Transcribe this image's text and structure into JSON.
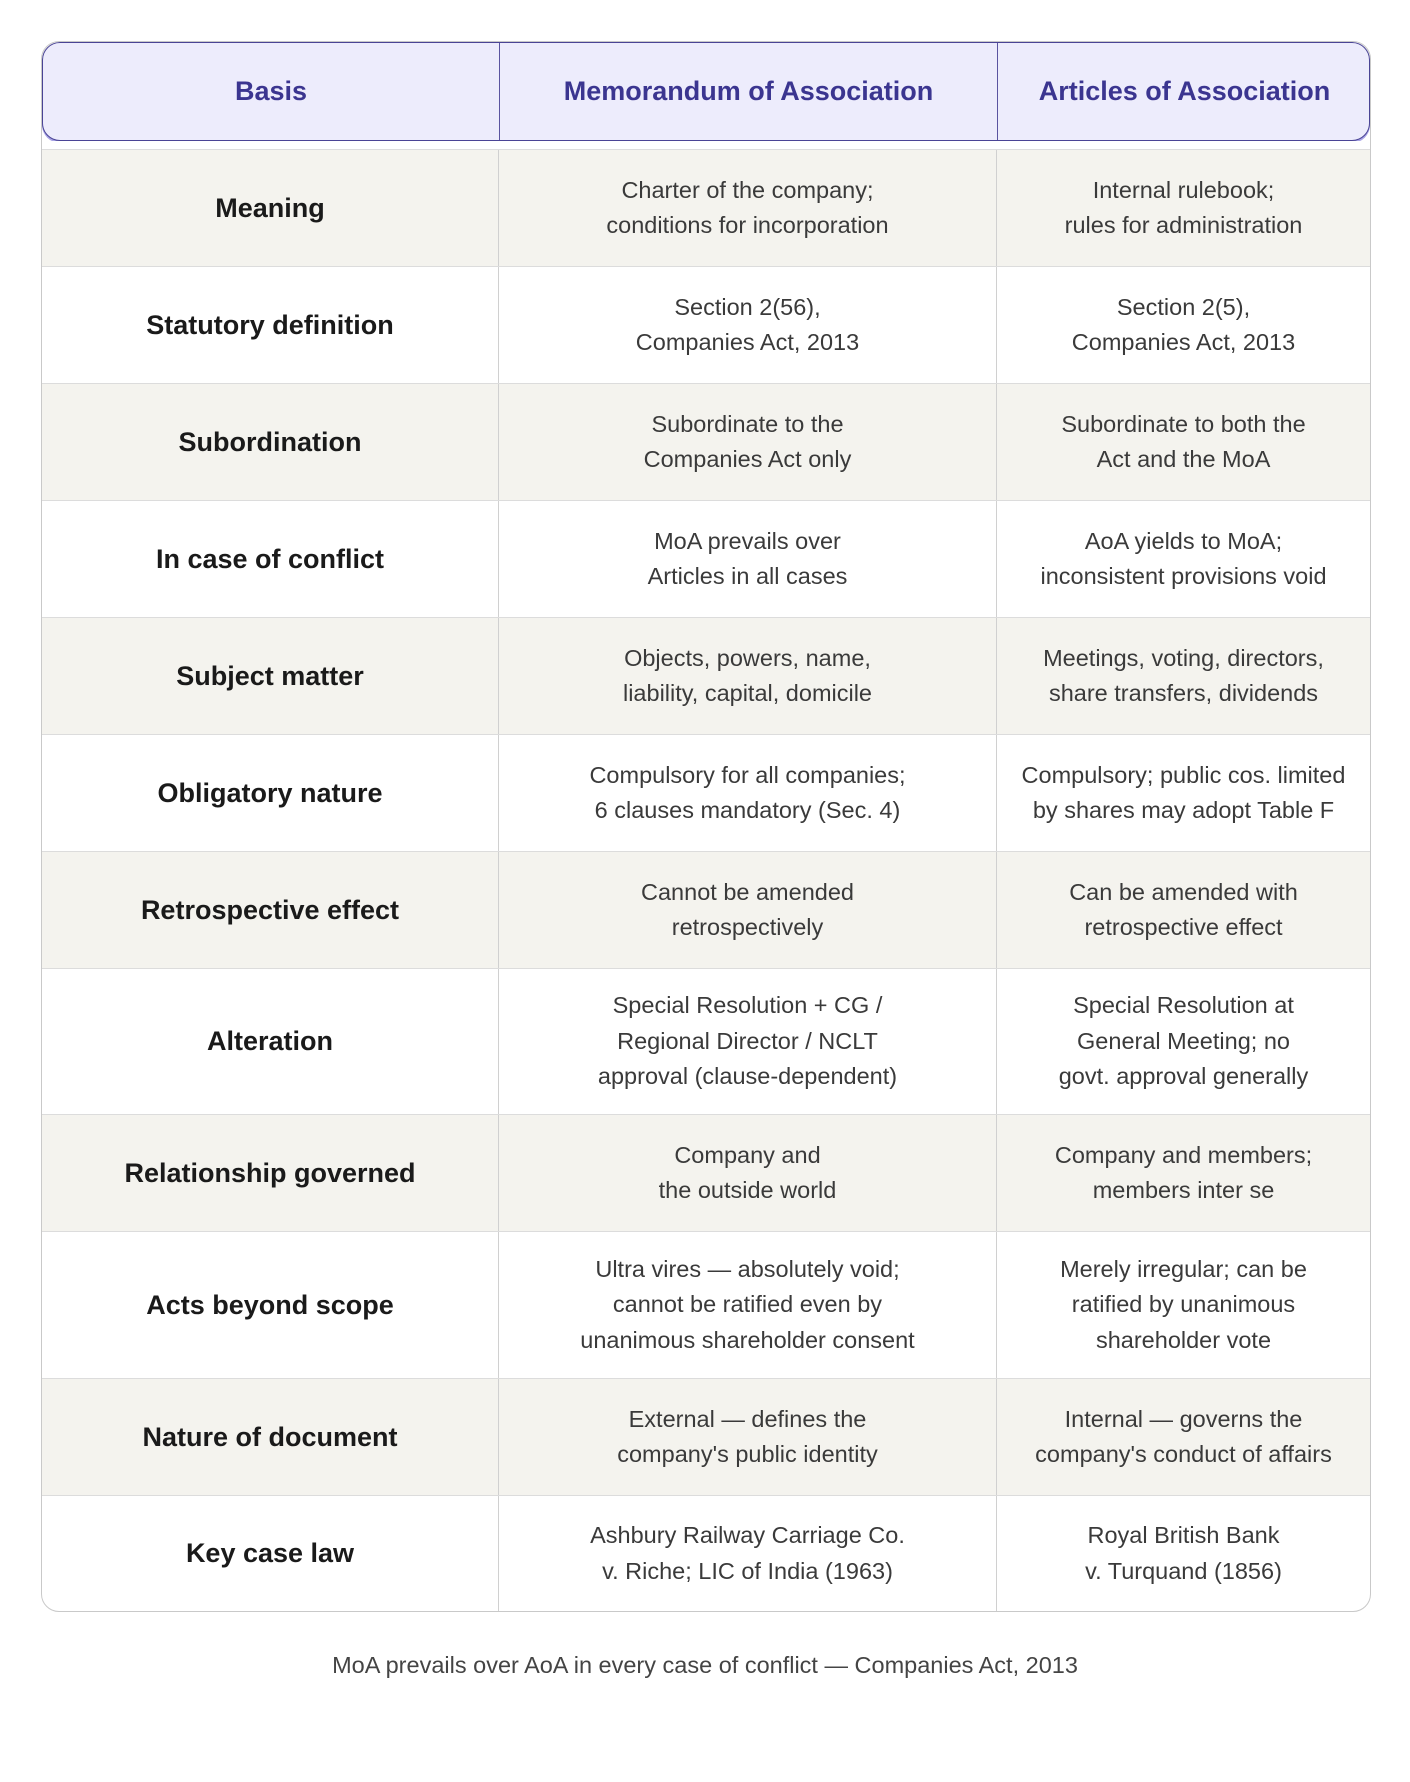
{
  "header": {
    "basis": "Basis",
    "moa": "Memorandum of Association",
    "aoa": "Articles of Association"
  },
  "rows": [
    {
      "basis": "Meaning",
      "moa": [
        "Charter of the company;",
        "conditions for incorporation"
      ],
      "aoa": [
        "Internal rulebook;",
        "rules for administration"
      ]
    },
    {
      "basis": "Statutory definition",
      "moa": [
        "Section 2(56),",
        "Companies Act, 2013"
      ],
      "aoa": [
        "Section 2(5),",
        "Companies Act, 2013"
      ]
    },
    {
      "basis": "Subordination",
      "moa": [
        "Subordinate to the",
        "Companies Act only"
      ],
      "aoa": [
        "Subordinate to both the",
        "Act and the MoA"
      ]
    },
    {
      "basis": "In case of conflict",
      "moa": [
        "MoA prevails over",
        "Articles in all cases"
      ],
      "aoa": [
        "AoA yields to MoA;",
        "inconsistent provisions void"
      ]
    },
    {
      "basis": "Subject matter",
      "moa": [
        "Objects, powers, name,",
        "liability, capital, domicile"
      ],
      "aoa": [
        "Meetings, voting, directors,",
        "share transfers, dividends"
      ]
    },
    {
      "basis": "Obligatory nature",
      "moa": [
        "Compulsory for all companies;",
        "6 clauses mandatory (Sec. 4)"
      ],
      "aoa": [
        "Compulsory; public cos. limited",
        "by shares may adopt Table F"
      ]
    },
    {
      "basis": "Retrospective effect",
      "moa": [
        "Cannot be amended",
        "retrospectively"
      ],
      "aoa": [
        "Can be amended with",
        "retrospective effect"
      ]
    },
    {
      "basis": "Alteration",
      "moa": [
        "Special Resolution + CG /",
        "Regional Director / NCLT",
        "approval (clause-dependent)"
      ],
      "aoa": [
        "Special Resolution at",
        "General Meeting; no",
        "govt. approval generally"
      ]
    },
    {
      "basis": "Relationship governed",
      "moa": [
        "Company and",
        "the outside world"
      ],
      "aoa": [
        "Company and members;",
        "members inter se"
      ]
    },
    {
      "basis": "Acts beyond scope",
      "moa": [
        "Ultra vires — absolutely void;",
        "cannot be ratified even by",
        "unanimous shareholder consent"
      ],
      "aoa": [
        "Merely irregular; can be",
        "ratified by unanimous",
        "shareholder vote"
      ]
    },
    {
      "basis": "Nature of document",
      "moa": [
        "External — defines the",
        "company's public identity"
      ],
      "aoa": [
        "Internal — governs the",
        "company's conduct of affairs"
      ]
    },
    {
      "basis": "Key case law",
      "moa": [
        "Ashbury Railway Carriage Co.",
        "v. Riche; LIC of India (1963)"
      ],
      "aoa": [
        "Royal British Bank",
        "v. Turquand (1856)"
      ]
    }
  ],
  "caption": "MoA prevails over AoA in every case of conflict — Companies Act, 2013",
  "colors": {
    "header_bg": "#edecfc",
    "header_text": "#3b3590",
    "alt_row": "#f4f3ee"
  }
}
